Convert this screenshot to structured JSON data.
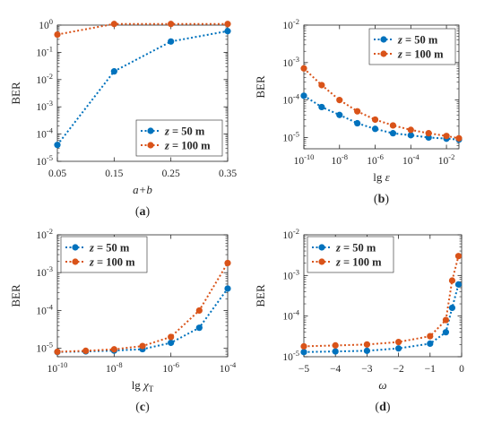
{
  "colors": {
    "series_1": "#0072bd",
    "series_2": "#d95319",
    "axis": "#262626"
  },
  "chart_data": [
    {
      "type": "line",
      "caption": "(a)",
      "xlabel": "a+b",
      "ylabel": "BER",
      "xscale": "linear",
      "yscale": "log",
      "xlim": [
        0.05,
        0.35
      ],
      "ylim": [
        1e-05,
        1
      ],
      "xticks": [
        0.05,
        0.15,
        0.25,
        0.35
      ],
      "xtick_labels": [
        "0.05",
        "0.15",
        "0.25",
        "0.35"
      ],
      "yticks": [
        1e-05,
        0.0001,
        0.001,
        0.01,
        0.1,
        1
      ],
      "ytick_labels": [
        [
          "10",
          "-5"
        ],
        [
          "10",
          "-4"
        ],
        [
          "10",
          "-3"
        ],
        [
          "10",
          "-2"
        ],
        [
          "10",
          "-1"
        ],
        [
          "10",
          "0"
        ]
      ],
      "legend_position": "bottom-right",
      "series": [
        {
          "name": "z = 50 m",
          "name_var": "z",
          "name_rest": " = 50 m",
          "color": "#0072bd",
          "x": [
            0.05,
            0.15,
            0.25,
            0.35
          ],
          "y": [
            4e-05,
            0.02,
            0.25,
            0.6
          ]
        },
        {
          "name": "z = 100 m",
          "name_var": "z",
          "name_rest": " = 100 m",
          "color": "#d95319",
          "x": [
            0.05,
            0.15,
            0.25,
            0.35
          ],
          "y": [
            0.45,
            1.1,
            1.1,
            1.1
          ]
        }
      ]
    },
    {
      "type": "line",
      "caption": "(b)",
      "xlabel": "lg ε",
      "ylabel": "BER",
      "xscale": "linear",
      "yscale": "log",
      "xlim": [
        -10,
        -1.3
      ],
      "ylim": [
        5e-06,
        0.01
      ],
      "xticks": [
        -10,
        -8,
        -6,
        -4,
        -2
      ],
      "xtick_labels": [
        [
          "10",
          "-10"
        ],
        [
          "10",
          "-8"
        ],
        [
          "10",
          "-6"
        ],
        [
          "10",
          "-4"
        ],
        [
          "10",
          "-2"
        ]
      ],
      "yticks": [
        1e-05,
        0.0001,
        0.001,
        0.01
      ],
      "ytick_labels": [
        [
          "10",
          "-5"
        ],
        [
          "10",
          "-4"
        ],
        [
          "10",
          "-3"
        ],
        [
          "10",
          "-2"
        ]
      ],
      "legend_position": "top-right",
      "series": [
        {
          "name": "z = 50 m",
          "name_var": "z",
          "name_rest": " = 50 m",
          "color": "#0072bd",
          "x": [
            -10,
            -9,
            -8,
            -7,
            -6,
            -5,
            -4,
            -3,
            -2,
            -1.3
          ],
          "y": [
            0.00013,
            6.5e-05,
            4e-05,
            2.4e-05,
            1.7e-05,
            1.3e-05,
            1.15e-05,
            1e-05,
            9.3e-06,
            8.8e-06
          ]
        },
        {
          "name": "z = 100 m",
          "name_var": "z",
          "name_rest": " = 100 m",
          "color": "#d95319",
          "x": [
            -10,
            -9,
            -8,
            -7,
            -6,
            -5,
            -4,
            -3,
            -2,
            -1.3
          ],
          "y": [
            0.0007,
            0.00025,
            0.0001,
            5e-05,
            3e-05,
            2.1e-05,
            1.6e-05,
            1.3e-05,
            1.1e-05,
            9.5e-06
          ]
        }
      ]
    },
    {
      "type": "line",
      "caption": "(c)",
      "xlabel": "lg χ",
      "xlabel_sub": "T",
      "ylabel": "BER",
      "xscale": "linear",
      "yscale": "log",
      "xlim": [
        -10,
        -4
      ],
      "ylim": [
        6e-06,
        0.01
      ],
      "xticks": [
        -10,
        -8,
        -6,
        -4
      ],
      "xtick_labels": [
        [
          "10",
          "-10"
        ],
        [
          "10",
          "-8"
        ],
        [
          "10",
          "-6"
        ],
        [
          "10",
          "-4"
        ]
      ],
      "yticks": [
        1e-05,
        0.0001,
        0.001,
        0.01
      ],
      "ytick_labels": [
        [
          "10",
          "-5"
        ],
        [
          "10",
          "-4"
        ],
        [
          "10",
          "-3"
        ],
        [
          "10",
          "-2"
        ]
      ],
      "legend_position": "top-left",
      "series": [
        {
          "name": "z = 50 m",
          "name_var": "z",
          "name_rest": " = 50 m",
          "color": "#0072bd",
          "x": [
            -10,
            -9,
            -8,
            -7,
            -6,
            -5,
            -4
          ],
          "y": [
            8e-06,
            8.3e-06,
            8.7e-06,
            9.5e-06,
            1.4e-05,
            3.5e-05,
            0.00038
          ]
        },
        {
          "name": "z = 100 m",
          "name_var": "z",
          "name_rest": " = 100 m",
          "color": "#d95319",
          "x": [
            -10,
            -9,
            -8,
            -7,
            -6,
            -5,
            -4
          ],
          "y": [
            8.1e-06,
            8.6e-06,
            9.4e-06,
            1.15e-05,
            2e-05,
            0.0001,
            0.0018
          ]
        }
      ]
    },
    {
      "type": "line",
      "caption": "(d)",
      "xlabel": "ω",
      "ylabel": "BER",
      "xscale": "linear",
      "yscale": "log",
      "xlim": [
        -5,
        0
      ],
      "ylim": [
        1e-05,
        0.01
      ],
      "xticks": [
        -5,
        -4,
        -3,
        -2,
        -1,
        0
      ],
      "xtick_labels": [
        "−5",
        "−4",
        "−3",
        "−2",
        "−1",
        "0"
      ],
      "yticks": [
        1e-05,
        0.0001,
        0.001,
        0.01
      ],
      "ytick_labels": [
        [
          "10",
          "-5"
        ],
        [
          "10",
          "-4"
        ],
        [
          "10",
          "-3"
        ],
        [
          "10",
          "-2"
        ]
      ],
      "legend_position": "top-left",
      "series": [
        {
          "name": "z = 50 m",
          "name_var": "z",
          "name_rest": " = 50 m",
          "color": "#0072bd",
          "x": [
            -5,
            -4,
            -3,
            -2,
            -1,
            -0.5,
            -0.3,
            -0.1
          ],
          "y": [
            1.3e-05,
            1.35e-05,
            1.4e-05,
            1.6e-05,
            2.1e-05,
            4e-05,
            0.00016,
            0.0006
          ]
        },
        {
          "name": "z = 100 m",
          "name_var": "z",
          "name_rest": " = 100 m",
          "color": "#d95319",
          "x": [
            -5,
            -4,
            -3,
            -2,
            -1,
            -0.5,
            -0.3,
            -0.1
          ],
          "y": [
            1.8e-05,
            1.9e-05,
            2e-05,
            2.3e-05,
            3.2e-05,
            8e-05,
            0.00075,
            0.003
          ]
        }
      ]
    }
  ]
}
